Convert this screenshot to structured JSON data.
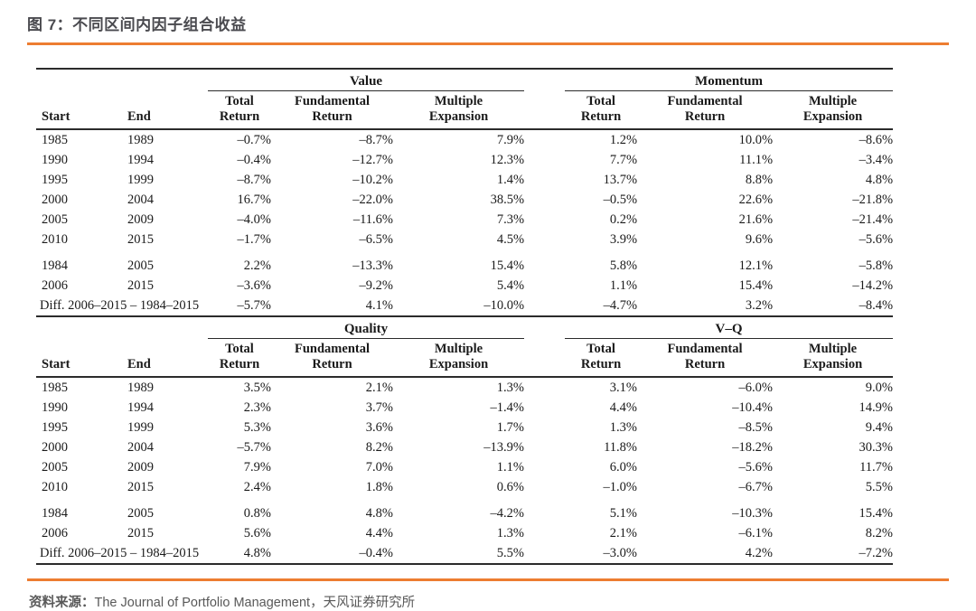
{
  "title": "图 7：不同区间内因子组合收益",
  "colors": {
    "accent": "#ED7D31",
    "title": "#4A4A4F",
    "table_text": "#1A1A1A",
    "rule": "#2B2B2B",
    "source_text": "#595959"
  },
  "tables": [
    {
      "groups": [
        "Value",
        "Momentum"
      ],
      "start_header": "Start",
      "end_header": "End",
      "metric_headers": [
        "Total Return",
        "Fundamental Return",
        "Multiple Expansion"
      ],
      "rows": [
        {
          "start": "1985",
          "end": "1989",
          "left": [
            "–0.7%",
            "–8.7%",
            "7.9%"
          ],
          "right": [
            "1.2%",
            "10.0%",
            "–8.6%"
          ]
        },
        {
          "start": "1990",
          "end": "1994",
          "left": [
            "–0.4%",
            "–12.7%",
            "12.3%"
          ],
          "right": [
            "7.7%",
            "11.1%",
            "–3.4%"
          ]
        },
        {
          "start": "1995",
          "end": "1999",
          "left": [
            "–8.7%",
            "–10.2%",
            "1.4%"
          ],
          "right": [
            "13.7%",
            "8.8%",
            "4.8%"
          ]
        },
        {
          "start": "2000",
          "end": "2004",
          "left": [
            "16.7%",
            "–22.0%",
            "38.5%"
          ],
          "right": [
            "–0.5%",
            "22.6%",
            "–21.8%"
          ]
        },
        {
          "start": "2005",
          "end": "2009",
          "left": [
            "–4.0%",
            "–11.6%",
            "7.3%"
          ],
          "right": [
            "0.2%",
            "21.6%",
            "–21.4%"
          ]
        },
        {
          "start": "2010",
          "end": "2015",
          "left": [
            "–1.7%",
            "–6.5%",
            "4.5%"
          ],
          "right": [
            "3.9%",
            "9.6%",
            "–5.6%"
          ]
        },
        {
          "start": "1984",
          "end": "2005",
          "left": [
            "2.2%",
            "–13.3%",
            "15.4%"
          ],
          "right": [
            "5.8%",
            "12.1%",
            "–5.8%"
          ],
          "group_break": true
        },
        {
          "start": "2006",
          "end": "2015",
          "left": [
            "–3.6%",
            "–9.2%",
            "5.4%"
          ],
          "right": [
            "1.1%",
            "15.4%",
            "–14.2%"
          ]
        },
        {
          "label": "Diff. 2006–2015 – 1984–2015",
          "left": [
            "–5.7%",
            "4.1%",
            "–10.0%"
          ],
          "right": [
            "–4.7%",
            "3.2%",
            "–8.4%"
          ],
          "is_diff": true
        }
      ]
    },
    {
      "groups": [
        "Quality",
        "V–Q"
      ],
      "start_header": "Start",
      "end_header": "End",
      "metric_headers": [
        "Total Return",
        "Fundamental Return",
        "Multiple Expansion"
      ],
      "rows": [
        {
          "start": "1985",
          "end": "1989",
          "left": [
            "3.5%",
            "2.1%",
            "1.3%"
          ],
          "right": [
            "3.1%",
            "–6.0%",
            "9.0%"
          ]
        },
        {
          "start": "1990",
          "end": "1994",
          "left": [
            "2.3%",
            "3.7%",
            "–1.4%"
          ],
          "right": [
            "4.4%",
            "–10.4%",
            "14.9%"
          ]
        },
        {
          "start": "1995",
          "end": "1999",
          "left": [
            "5.3%",
            "3.6%",
            "1.7%"
          ],
          "right": [
            "1.3%",
            "–8.5%",
            "9.4%"
          ]
        },
        {
          "start": "2000",
          "end": "2004",
          "left": [
            "–5.7%",
            "8.2%",
            "–13.9%"
          ],
          "right": [
            "11.8%",
            "–18.2%",
            "30.3%"
          ]
        },
        {
          "start": "2005",
          "end": "2009",
          "left": [
            "7.9%",
            "7.0%",
            "1.1%"
          ],
          "right": [
            "6.0%",
            "–5.6%",
            "11.7%"
          ]
        },
        {
          "start": "2010",
          "end": "2015",
          "left": [
            "2.4%",
            "1.8%",
            "0.6%"
          ],
          "right": [
            "–1.0%",
            "–6.7%",
            "5.5%"
          ]
        },
        {
          "start": "1984",
          "end": "2005",
          "left": [
            "0.8%",
            "4.8%",
            "–4.2%"
          ],
          "right": [
            "5.1%",
            "–10.3%",
            "15.4%"
          ],
          "group_break": true
        },
        {
          "start": "2006",
          "end": "2015",
          "left": [
            "5.6%",
            "4.4%",
            "1.3%"
          ],
          "right": [
            "2.1%",
            "–6.1%",
            "8.2%"
          ]
        },
        {
          "label": "Diff. 2006–2015 – 1984–2015",
          "left": [
            "4.8%",
            "–0.4%",
            "5.5%"
          ],
          "right": [
            "–3.0%",
            "4.2%",
            "–7.2%"
          ],
          "is_diff": true
        }
      ]
    }
  ],
  "source": {
    "label": "资料来源：",
    "text": "The Journal of Portfolio Management，天风证券研究所"
  }
}
